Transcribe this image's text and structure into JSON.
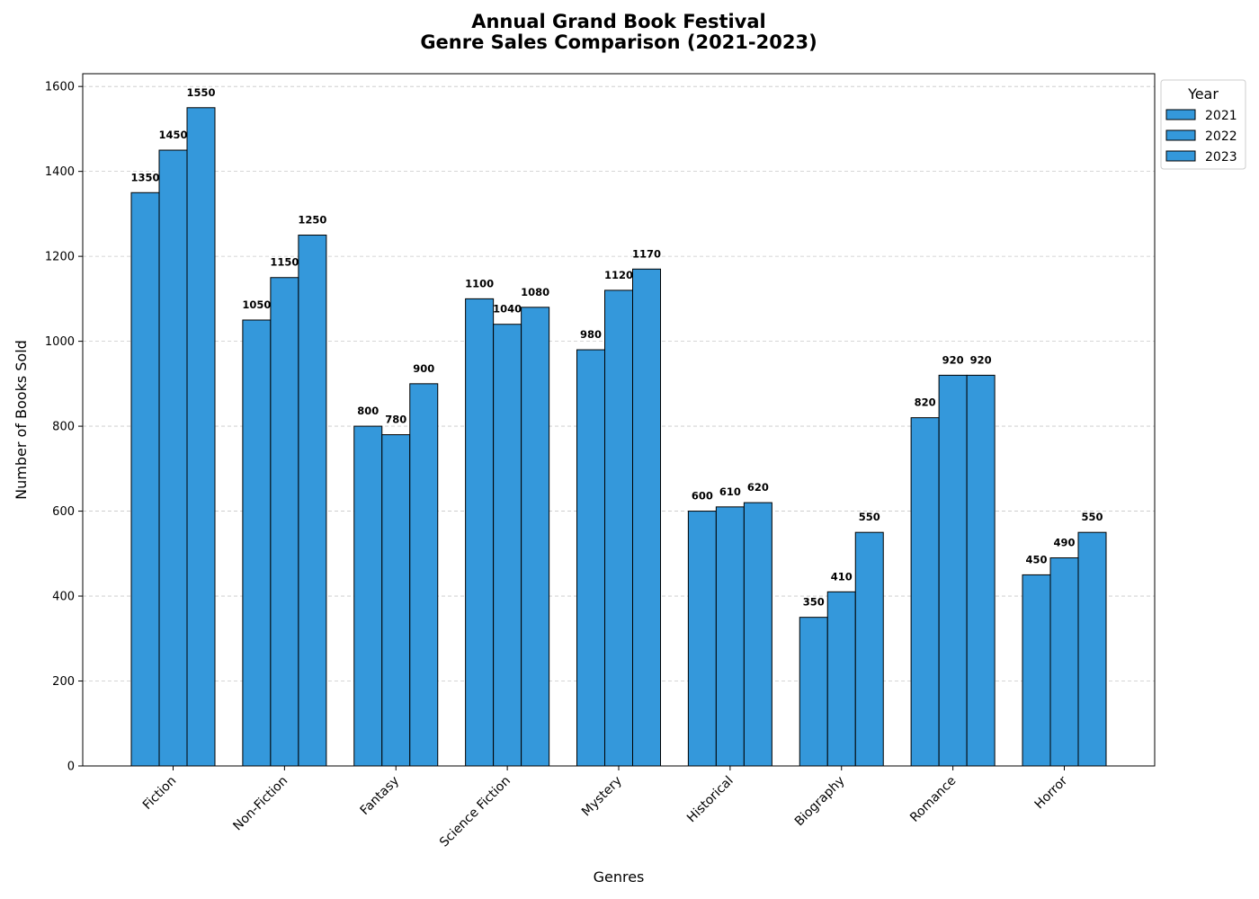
{
  "chart_data": {
    "type": "bar",
    "title_line1": "Annual Grand Book Festival",
    "title_line2": "Genre Sales Comparison (2021-2023)",
    "xlabel": "Genres",
    "ylabel": "Number of Books Sold",
    "categories": [
      "Fiction",
      "Non-Fiction",
      "Fantasy",
      "Science Fiction",
      "Mystery",
      "Historical",
      "Biography",
      "Romance",
      "Horror"
    ],
    "series": [
      {
        "name": "2021",
        "values": [
          1350,
          1050,
          800,
          1100,
          980,
          600,
          350,
          820,
          450
        ]
      },
      {
        "name": "2022",
        "values": [
          1450,
          1150,
          780,
          1040,
          1120,
          610,
          410,
          920,
          490
        ]
      },
      {
        "name": "2023",
        "values": [
          1550,
          1250,
          900,
          1080,
          1170,
          620,
          550,
          920,
          550
        ]
      }
    ],
    "ylim": [
      0,
      1630
    ],
    "yticks": [
      0,
      200,
      400,
      600,
      800,
      1000,
      1200,
      1400,
      1600
    ],
    "grid": "y-dashed",
    "legend": {
      "title": "Year",
      "placement": "outside-top-right"
    },
    "bar_color": "#3498db",
    "edge_color": "#000000"
  }
}
